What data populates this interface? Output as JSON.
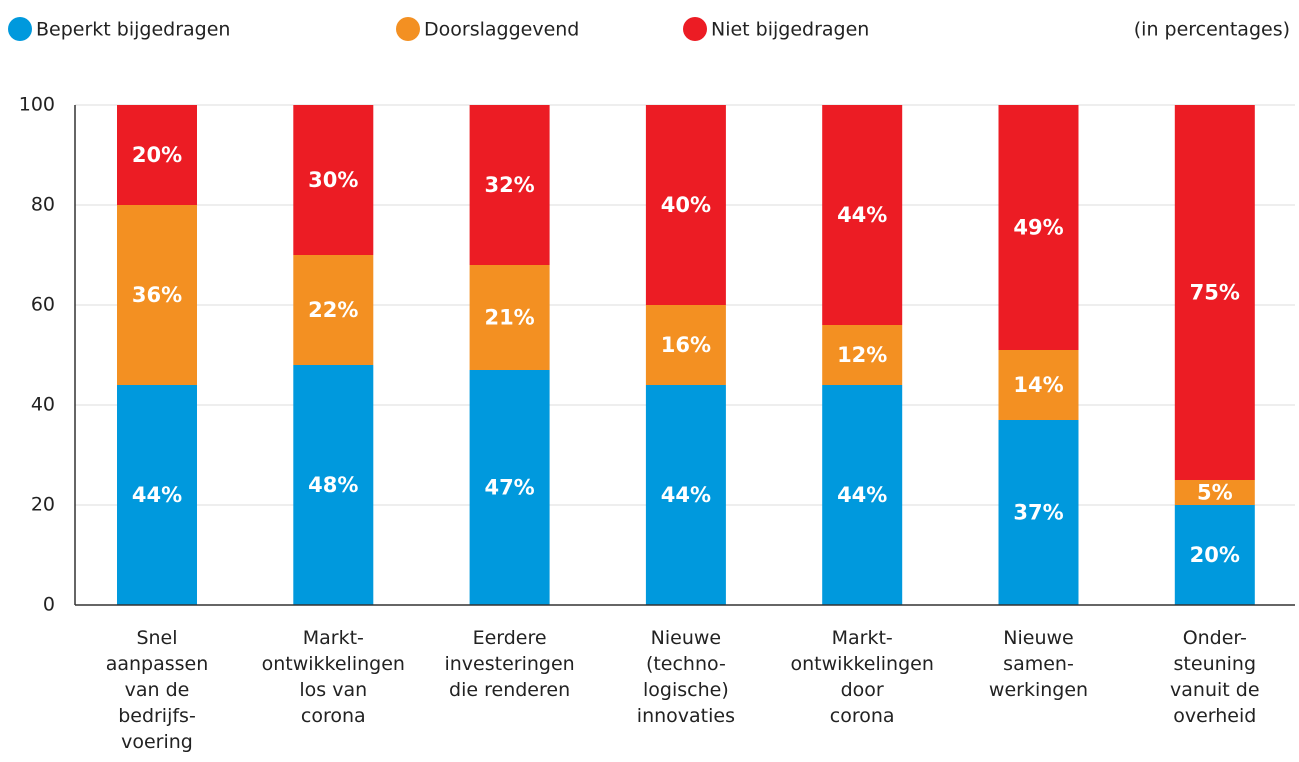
{
  "chart_data": {
    "type": "stacked_bar",
    "note": "(in percentages)",
    "categories": [
      [
        "Snel",
        "aanpassen",
        "van de",
        "bedrijfs-",
        "voering"
      ],
      [
        "Markt-",
        "ontwikkelingen",
        "los van",
        "corona"
      ],
      [
        "Eerdere",
        "investeringen",
        "die renderen"
      ],
      [
        "Nieuwe",
        "(techno-",
        "logische)",
        "innovaties"
      ],
      [
        "Markt-",
        "ontwikkelingen",
        "door",
        "corona"
      ],
      [
        "Nieuwe",
        "samen-",
        "werkingen"
      ],
      [
        "Onder-",
        "steuning",
        "vanuit de",
        "overheid"
      ]
    ],
    "series": [
      {
        "name": "Beperkt bijgedragen",
        "color": "#0099dd",
        "values": [
          44,
          48,
          47,
          44,
          44,
          37,
          20
        ],
        "value_labels": [
          "44%",
          "48%",
          "47%",
          "44%",
          "44%",
          "37%",
          "20%"
        ]
      },
      {
        "name": "Doorslaggevend",
        "color": "#f39022",
        "values": [
          36,
          22,
          21,
          16,
          12,
          14,
          5
        ],
        "value_labels": [
          "36%",
          "22%",
          "21%",
          "16%",
          "12%",
          "14%",
          "5%"
        ]
      },
      {
        "name": "Niet bijgedragen",
        "color": "#ec1c24",
        "values": [
          20,
          30,
          32,
          40,
          44,
          49,
          75
        ],
        "value_labels": [
          "20%",
          "30%",
          "32%",
          "40%",
          "44%",
          "49%",
          "75%"
        ]
      }
    ],
    "ylim": [
      0,
      100
    ],
    "yticks": [
      0,
      20,
      40,
      60,
      80,
      100
    ],
    "grid": true
  }
}
